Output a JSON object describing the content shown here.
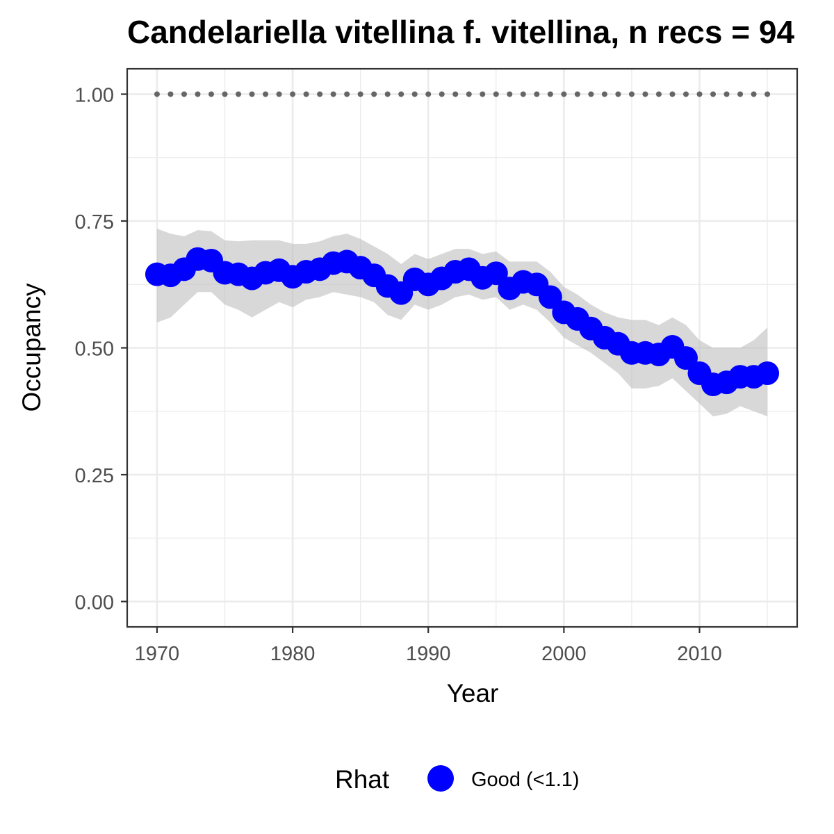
{
  "chart_data": {
    "type": "line",
    "title": "Candelariella vitellina f. vitellina, n recs = 94",
    "xlabel": "Year",
    "ylabel": "Occupancy",
    "xlim": [
      1967.8,
      2017.2
    ],
    "ylim": [
      -0.05,
      1.05
    ],
    "x_ticks": [
      1970,
      1980,
      1990,
      2000,
      2010
    ],
    "x_tick_labels": [
      "1970",
      "1980",
      "1990",
      "2000",
      "2010"
    ],
    "y_ticks": [
      0,
      0.25,
      0.5,
      0.75,
      1.0
    ],
    "y_tick_labels": [
      "0.00",
      "0.25",
      "0.50",
      "0.75",
      "1.00"
    ],
    "grid": true,
    "x": [
      1970,
      1971,
      1972,
      1973,
      1974,
      1975,
      1976,
      1977,
      1978,
      1979,
      1980,
      1981,
      1982,
      1983,
      1984,
      1985,
      1986,
      1987,
      1988,
      1989,
      1990,
      1991,
      1992,
      1993,
      1994,
      1995,
      1996,
      1997,
      1998,
      1999,
      2000,
      2001,
      2002,
      2003,
      2004,
      2005,
      2006,
      2007,
      2008,
      2009,
      2010,
      2011,
      2012,
      2013,
      2014,
      2015
    ],
    "series": [
      {
        "values": [
          0.645,
          0.643,
          0.655,
          0.675,
          0.672,
          0.648,
          0.645,
          0.637,
          0.648,
          0.653,
          0.64,
          0.65,
          0.655,
          0.667,
          0.67,
          0.658,
          0.643,
          0.622,
          0.608,
          0.635,
          0.625,
          0.637,
          0.65,
          0.655,
          0.638,
          0.647,
          0.617,
          0.63,
          0.625,
          0.6,
          0.57,
          0.557,
          0.538,
          0.52,
          0.508,
          0.49,
          0.49,
          0.487,
          0.502,
          0.48,
          0.45,
          0.428,
          0.432,
          0.443,
          0.443,
          0.45
        ],
        "lower": [
          0.55,
          0.56,
          0.585,
          0.61,
          0.61,
          0.585,
          0.575,
          0.56,
          0.575,
          0.59,
          0.58,
          0.595,
          0.6,
          0.61,
          0.605,
          0.6,
          0.59,
          0.565,
          0.555,
          0.585,
          0.575,
          0.585,
          0.6,
          0.605,
          0.595,
          0.6,
          0.575,
          0.585,
          0.575,
          0.55,
          0.52,
          0.505,
          0.49,
          0.47,
          0.45,
          0.42,
          0.42,
          0.425,
          0.44,
          0.415,
          0.39,
          0.365,
          0.37,
          0.385,
          0.375,
          0.365
        ],
        "upper": [
          0.735,
          0.725,
          0.72,
          0.732,
          0.73,
          0.712,
          0.71,
          0.712,
          0.712,
          0.712,
          0.705,
          0.705,
          0.71,
          0.72,
          0.725,
          0.715,
          0.7,
          0.685,
          0.665,
          0.685,
          0.675,
          0.685,
          0.695,
          0.695,
          0.685,
          0.69,
          0.67,
          0.67,
          0.67,
          0.65,
          0.62,
          0.605,
          0.585,
          0.57,
          0.56,
          0.555,
          0.555,
          0.545,
          0.56,
          0.545,
          0.515,
          0.5,
          0.5,
          0.5,
          0.515,
          0.54
        ],
        "color": "#0000ff"
      }
    ],
    "reference_line": {
      "y": 1.0,
      "style": "dotted",
      "color": "#666666"
    },
    "ribbon_color": "#bebebe",
    "legend": {
      "position": "bottom",
      "title": "Rhat",
      "items": [
        {
          "label": "Good (<1.1)",
          "color": "#0000ff"
        }
      ]
    }
  }
}
